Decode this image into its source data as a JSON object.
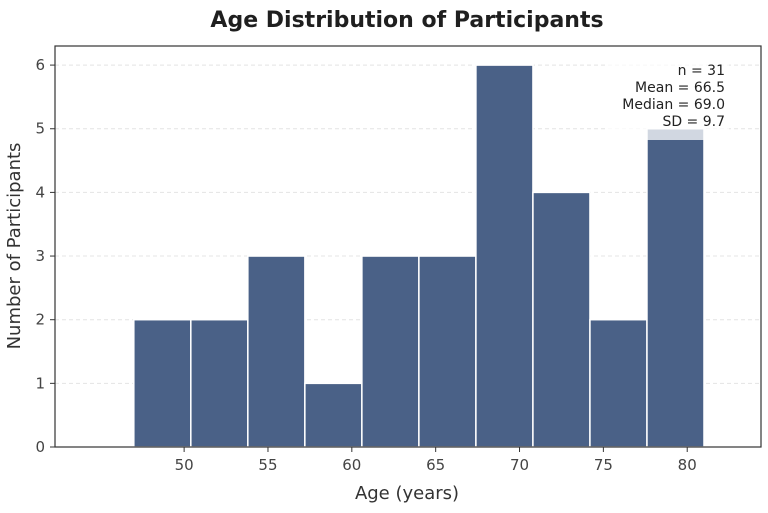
{
  "chart_data": {
    "type": "bar",
    "title": "Age Distribution of Participants",
    "xlabel": "Age (years)",
    "ylabel": "Number of Participants",
    "bins": [
      {
        "start": 47.0,
        "end": 50.4,
        "count": 2
      },
      {
        "start": 50.4,
        "end": 53.8,
        "count": 2
      },
      {
        "start": 53.8,
        "end": 57.2,
        "count": 3
      },
      {
        "start": 57.2,
        "end": 60.6,
        "count": 1
      },
      {
        "start": 60.6,
        "end": 64.0,
        "count": 3
      },
      {
        "start": 64.0,
        "end": 67.4,
        "count": 3
      },
      {
        "start": 67.4,
        "end": 70.8,
        "count": 6
      },
      {
        "start": 70.8,
        "end": 74.2,
        "count": 4
      },
      {
        "start": 74.2,
        "end": 77.6,
        "count": 2
      },
      {
        "start": 77.6,
        "end": 81.0,
        "count": 5
      }
    ],
    "xlim": [
      42.3,
      84.4
    ],
    "ylim": [
      0,
      6.3
    ],
    "xticks": [
      50,
      55,
      60,
      65,
      70,
      75,
      80
    ],
    "yticks": [
      0,
      1,
      2,
      3,
      4,
      5,
      6
    ],
    "grid": "horizontal dashed",
    "bar_color": "#4a6187",
    "bar_edge_color": "#ffffff",
    "stats_box": {
      "placement": "top-right",
      "lines": [
        "n = 31",
        "Mean = 66.5",
        "Median = 69.0",
        "SD = 9.7"
      ]
    }
  }
}
